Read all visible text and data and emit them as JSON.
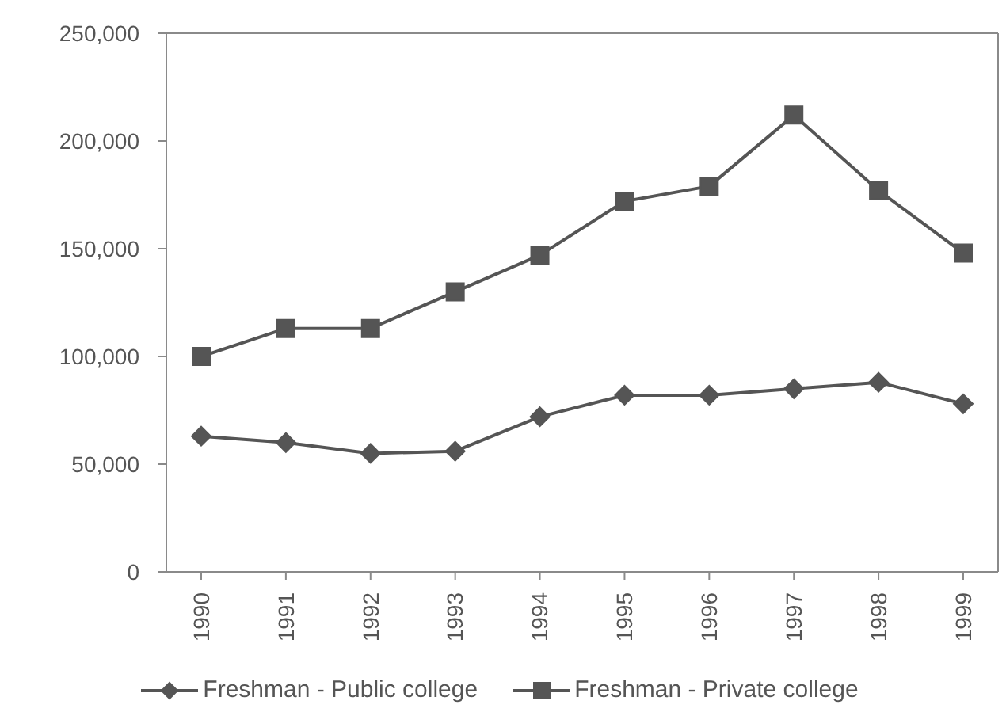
{
  "chart_data": {
    "type": "line",
    "categories": [
      "1990",
      "1991",
      "1992",
      "1993",
      "1994",
      "1995",
      "1996",
      "1997",
      "1998",
      "1999"
    ],
    "series": [
      {
        "name": "Freshman - Public college",
        "color": "#555555",
        "marker": "diamond",
        "values": [
          63000,
          60000,
          55000,
          56000,
          72000,
          82000,
          82000,
          85000,
          88000,
          78000
        ]
      },
      {
        "name": "Freshman - Private college",
        "color": "#555555",
        "marker": "square",
        "values": [
          100000,
          113000,
          113000,
          130000,
          147000,
          172000,
          179000,
          212000,
          177000,
          148000
        ]
      }
    ],
    "ylim": [
      0,
      250000
    ],
    "yticks": [
      {
        "value": 0,
        "label": "0"
      },
      {
        "value": 50000,
        "label": "50,000"
      },
      {
        "value": 100000,
        "label": "100,000"
      },
      {
        "value": 150000,
        "label": "150,000"
      },
      {
        "value": 200000,
        "label": "200,000"
      },
      {
        "value": 250000,
        "label": "250,000"
      }
    ],
    "legend": "bottom"
  }
}
